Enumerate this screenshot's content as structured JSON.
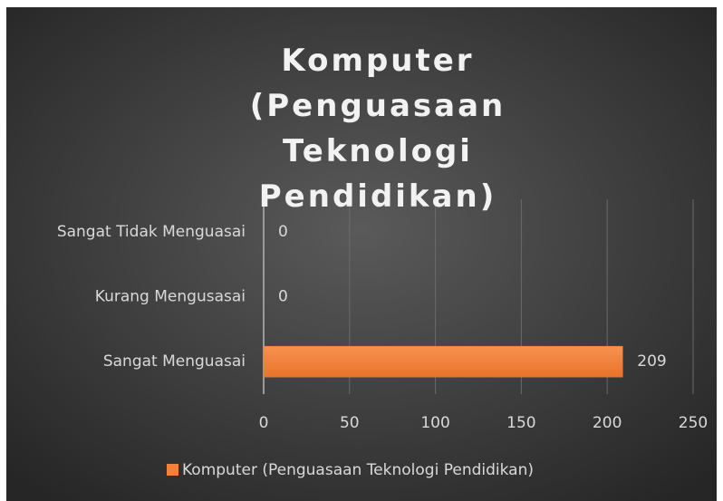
{
  "chart_data": {
    "type": "bar",
    "orientation": "horizontal",
    "title": "Komputer (Penguasaan Teknologi Pendidikan)",
    "categories": [
      "Sangat Tidak Menguasai",
      "Kurang Mengusasai",
      "Sangat Menguasai"
    ],
    "series": [
      {
        "name": "Komputer (Penguasaan Teknologi Pendidikan)",
        "color": "#f0823a",
        "values": [
          0,
          0,
          209
        ]
      }
    ],
    "xlim": [
      0,
      250
    ],
    "xticks": [
      0,
      50,
      100,
      150,
      200,
      250
    ],
    "grid": true,
    "legend": "bottom"
  }
}
